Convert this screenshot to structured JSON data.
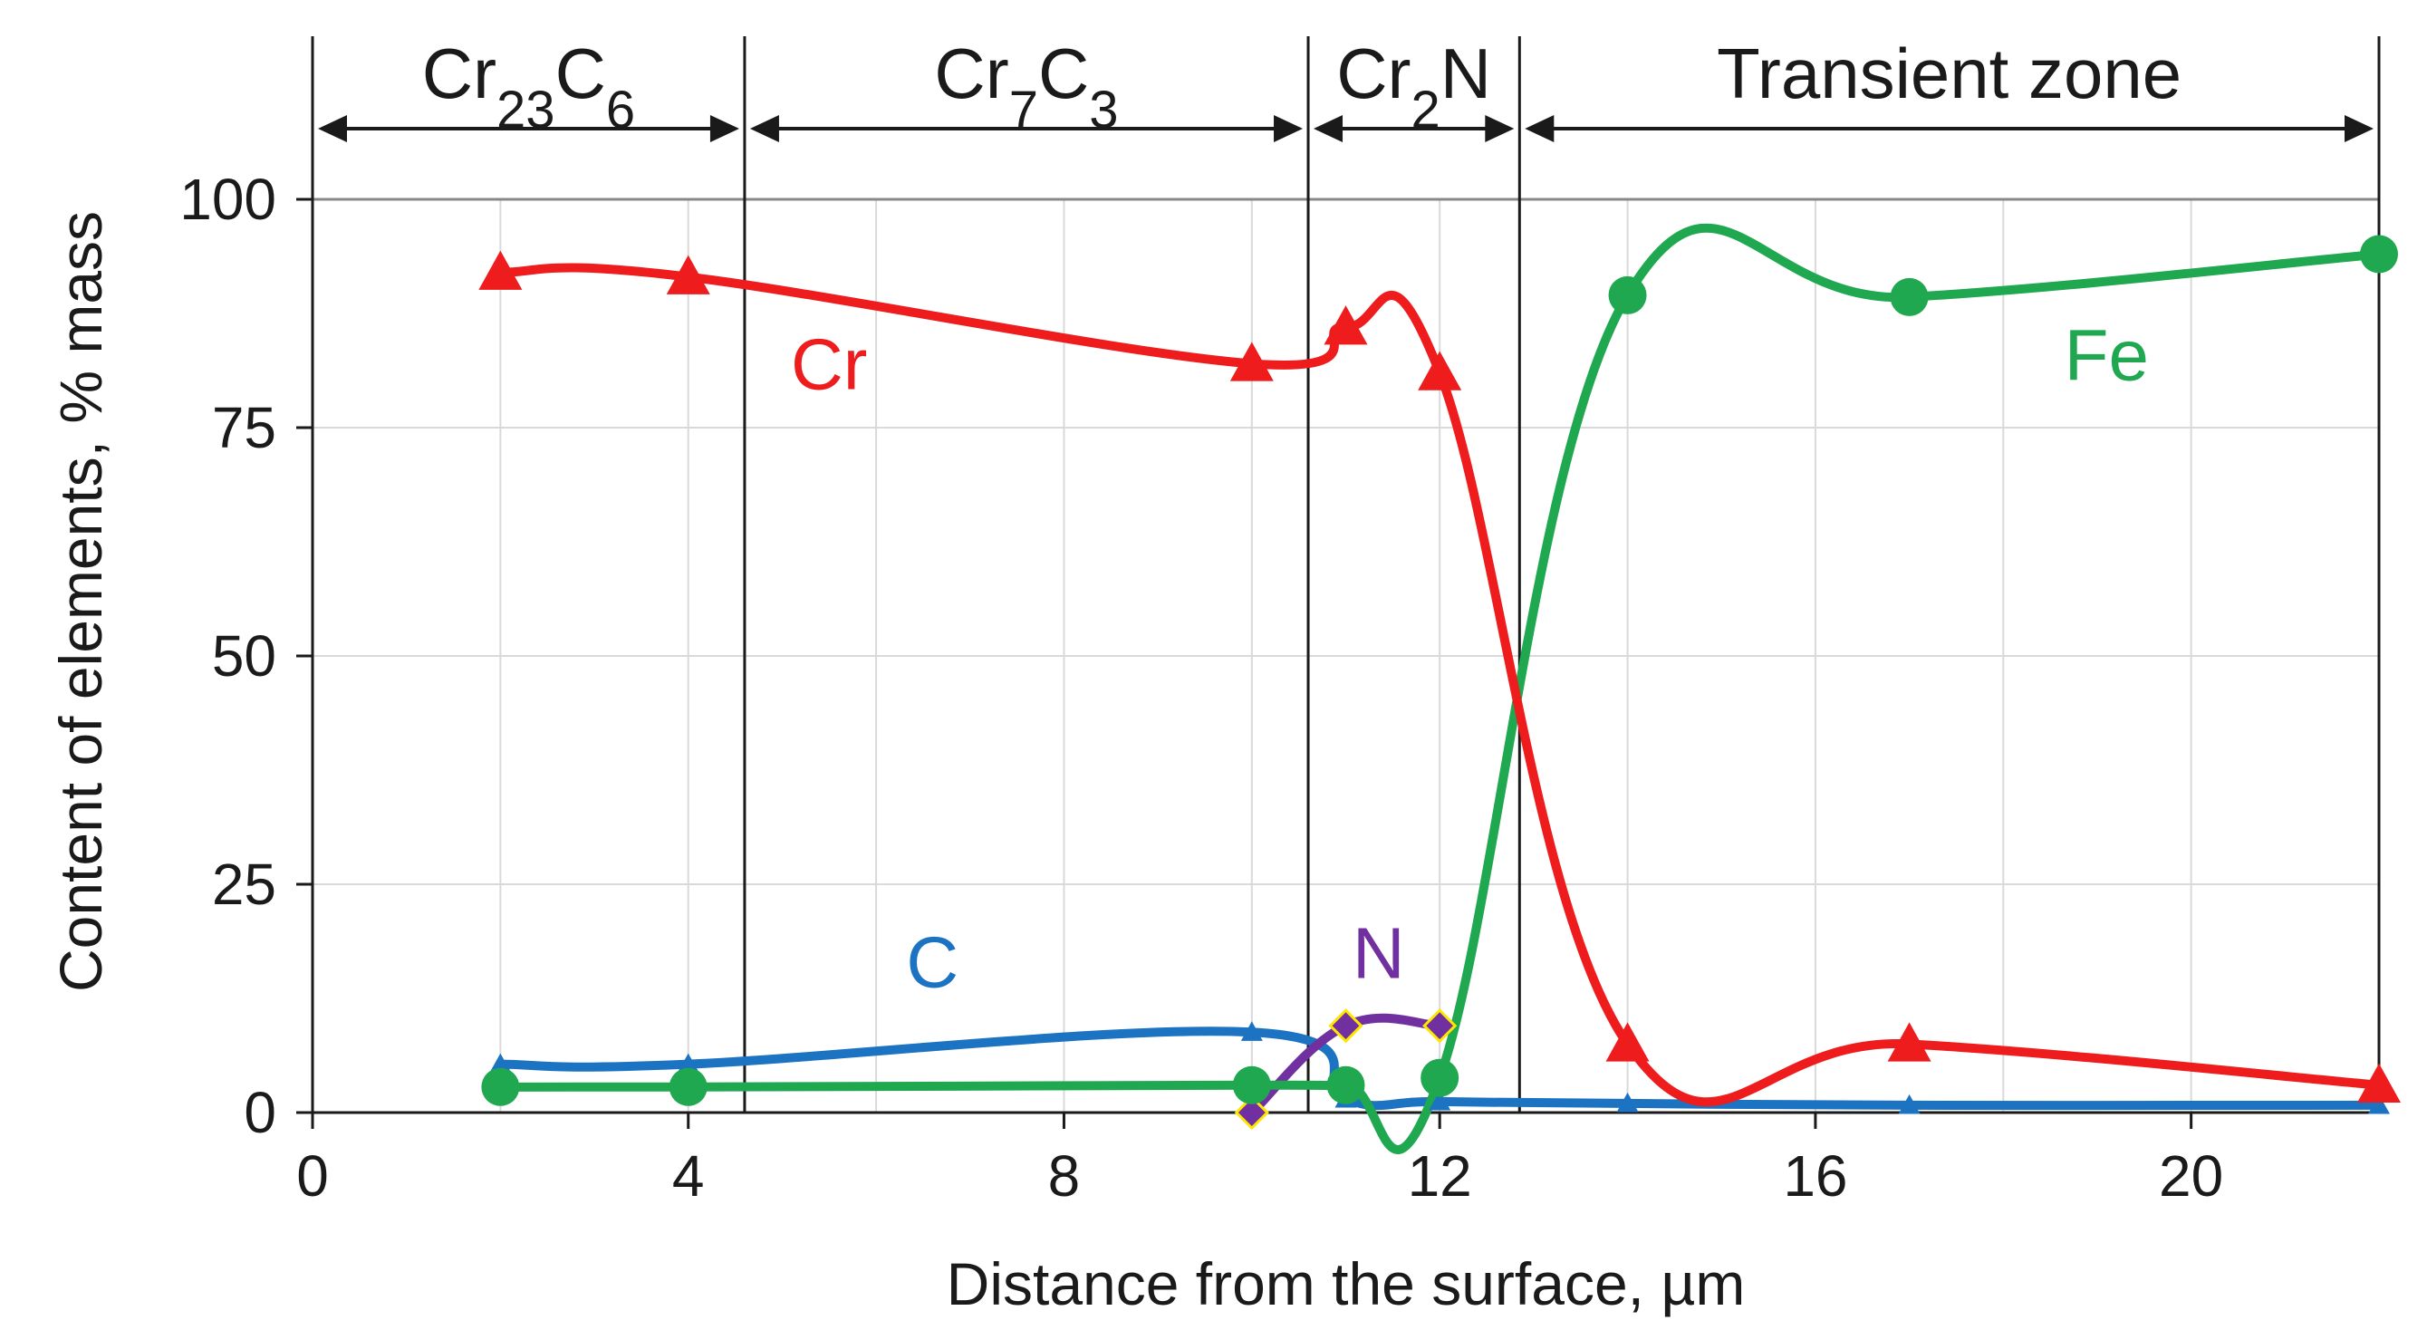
{
  "chart_data": {
    "type": "line",
    "title": "",
    "xlabel": "Distance from the surface, µm",
    "ylabel": "Content of elements, % mass",
    "xlim": [
      0,
      22
    ],
    "ylim": [
      0,
      100
    ],
    "xticks": [
      0,
      4,
      8,
      12,
      16,
      20
    ],
    "yticks": [
      0,
      25,
      50,
      75,
      100
    ],
    "grid": true,
    "legend": "inline labels",
    "zone_boundaries": [
      4.6,
      10.6,
      12.85,
      22
    ],
    "zones": [
      {
        "name": "Cr23C6",
        "base": "Cr",
        "sub1": "23",
        "mid": "C",
        "sub2": "6",
        "from": 0,
        "to": 4.6
      },
      {
        "name": "Cr7C3",
        "base": "Cr",
        "sub1": "7",
        "mid": "C",
        "sub2": "3",
        "from": 4.6,
        "to": 10.6
      },
      {
        "name": "Cr2N",
        "base": "Cr",
        "sub1": "2",
        "mid": "N",
        "sub2": "",
        "from": 10.6,
        "to": 12.85
      },
      {
        "name": "Transient zone",
        "base": "Transient zone",
        "sub1": "",
        "mid": "",
        "sub2": "",
        "from": 12.85,
        "to": 22
      }
    ],
    "series": [
      {
        "name": "Cr",
        "label": "Cr",
        "color": "#ee1c1c",
        "marker": "triangle",
        "x": [
          2,
          4,
          10,
          11,
          12,
          14,
          17,
          22
        ],
        "y": [
          92,
          91.5,
          82,
          86,
          81,
          7.5,
          7.5,
          3
        ],
        "label_at": [
          5.5,
          82
        ]
      },
      {
        "name": "Fe",
        "label": "Fe",
        "color": "#1fa84f",
        "marker": "circle",
        "x": [
          2,
          4,
          10,
          11,
          12,
          14,
          17,
          22
        ],
        "y": [
          2.8,
          2.8,
          3,
          3,
          3.8,
          89.5,
          89.3,
          94
        ],
        "label_at": [
          19.1,
          83
        ]
      },
      {
        "name": "C",
        "label": "C",
        "color": "#1b73c2",
        "marker": "small-triangle",
        "x": [
          2,
          4,
          10,
          11,
          12,
          14,
          17,
          22
        ],
        "y": [
          5.3,
          5.3,
          8.8,
          1.5,
          1.2,
          1,
          0.8,
          0.8
        ],
        "label_at": [
          6.6,
          16.5
        ]
      },
      {
        "name": "N",
        "label": "N",
        "color": "#7030a0",
        "marker": "diamond",
        "x": [
          10,
          11,
          12
        ],
        "y": [
          0,
          9.5,
          9.5
        ],
        "label_at": [
          11.35,
          17.5
        ]
      }
    ]
  },
  "colors": {
    "axis": "#1a1a1a",
    "grid": "#d9d9d9",
    "frame": "#888888",
    "diamond_outline": "#ffe600"
  }
}
